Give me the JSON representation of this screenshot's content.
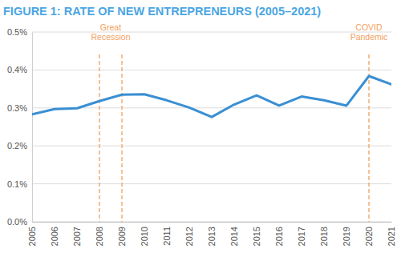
{
  "chart_data": {
    "type": "line",
    "title": "FIGURE 1: RATE OF NEW ENTREPRENEURS (2005–2021)",
    "x": [
      2005,
      2006,
      2007,
      2008,
      2009,
      2010,
      2011,
      2012,
      2013,
      2014,
      2015,
      2016,
      2017,
      2018,
      2019,
      2020,
      2021
    ],
    "values": [
      0.283,
      0.297,
      0.299,
      0.318,
      0.335,
      0.336,
      0.32,
      0.301,
      0.276,
      0.309,
      0.333,
      0.306,
      0.33,
      0.32,
      0.306,
      0.384,
      0.362
    ],
    "color": "#3a8fd3",
    "xlim": [
      2005,
      2021
    ],
    "xticks": [
      2005,
      2006,
      2007,
      2008,
      2009,
      2010,
      2011,
      2012,
      2013,
      2014,
      2015,
      2016,
      2017,
      2018,
      2019,
      2020,
      2021
    ],
    "ylim": [
      0,
      0.5
    ],
    "yticks": [
      {
        "value": 0,
        "label": "0.0%"
      },
      {
        "value": 0.1,
        "label": "0.1%"
      },
      {
        "value": 0.2,
        "label": "0.2%"
      },
      {
        "value": 0.3,
        "label": "0.3%"
      },
      {
        "value": 0.4,
        "label": "0.4%"
      },
      {
        "value": 0.5,
        "label": "0.5%"
      }
    ],
    "grid": true,
    "annotations": [
      {
        "text": "Great Recession",
        "x": [
          2008,
          2009
        ],
        "color": "#f2a05c"
      },
      {
        "text": "COVID Pandemic",
        "x": [
          2020
        ],
        "color": "#f2a05c"
      }
    ]
  }
}
